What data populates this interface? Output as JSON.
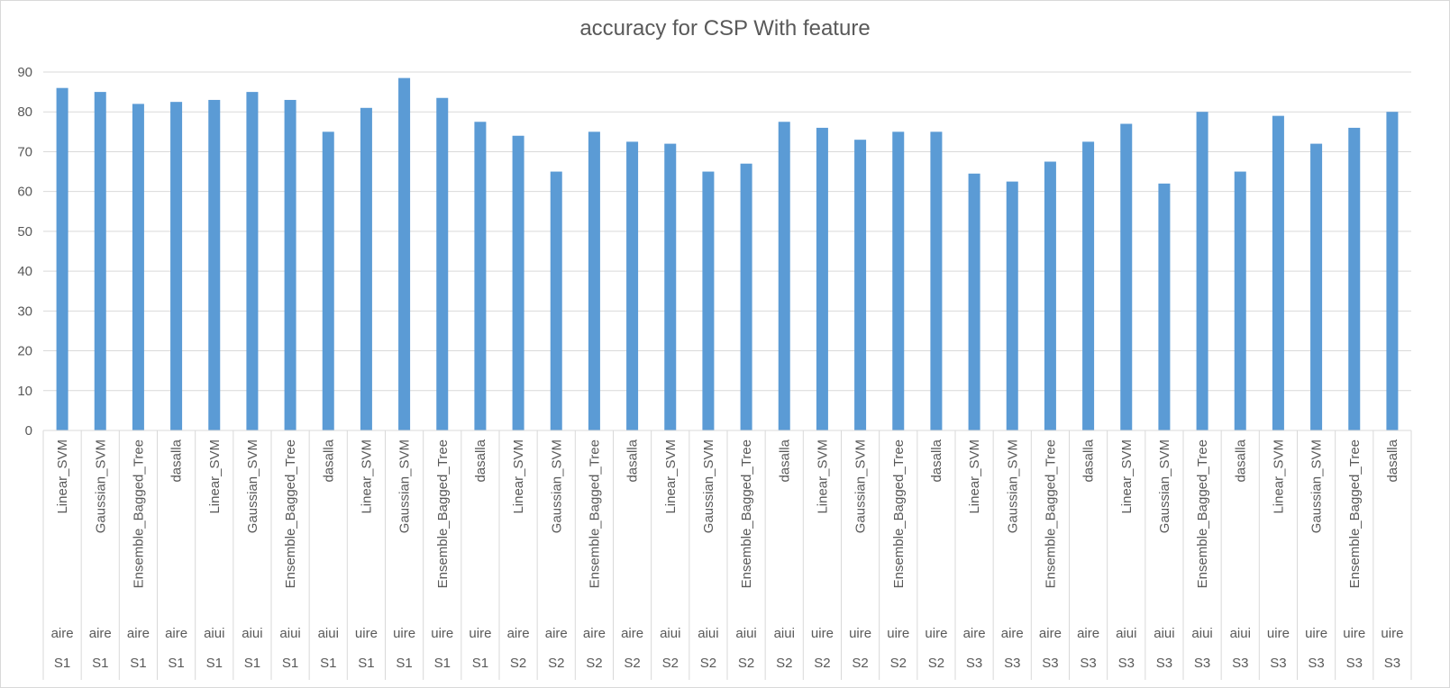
{
  "chart_data": {
    "type": "bar",
    "title": "accuracy for CSP With feature",
    "xlabel": "",
    "ylabel": "",
    "ylim": [
      0,
      90
    ],
    "yticks": [
      0,
      10,
      20,
      30,
      40,
      50,
      60,
      70,
      80,
      90
    ],
    "grid": true,
    "legend": "none",
    "bar_color": "#5b9bd5",
    "categories": [
      {
        "classifier": "Linear_SVM",
        "task": "aire",
        "subject": "S1"
      },
      {
        "classifier": "Gaussian_SVM",
        "task": "aire",
        "subject": "S1"
      },
      {
        "classifier": "Ensemble_Bagged_Tree",
        "task": "aire",
        "subject": "S1"
      },
      {
        "classifier": "dasalla",
        "task": "aire",
        "subject": "S1"
      },
      {
        "classifier": "Linear_SVM",
        "task": "aiui",
        "subject": "S1"
      },
      {
        "classifier": "Gaussian_SVM",
        "task": "aiui",
        "subject": "S1"
      },
      {
        "classifier": "Ensemble_Bagged_Tree",
        "task": "aiui",
        "subject": "S1"
      },
      {
        "classifier": "dasalla",
        "task": "aiui",
        "subject": "S1"
      },
      {
        "classifier": "Linear_SVM",
        "task": "uire",
        "subject": "S1"
      },
      {
        "classifier": "Gaussian_SVM",
        "task": "uire",
        "subject": "S1"
      },
      {
        "classifier": "Ensemble_Bagged_Tree",
        "task": "uire",
        "subject": "S1"
      },
      {
        "classifier": "dasalla",
        "task": "uire",
        "subject": "S1"
      },
      {
        "classifier": "Linear_SVM",
        "task": "aire",
        "subject": "S2"
      },
      {
        "classifier": "Gaussian_SVM",
        "task": "aire",
        "subject": "S2"
      },
      {
        "classifier": "Ensemble_Bagged_Tree",
        "task": "aire",
        "subject": "S2"
      },
      {
        "classifier": "dasalla",
        "task": "aire",
        "subject": "S2"
      },
      {
        "classifier": "Linear_SVM",
        "task": "aiui",
        "subject": "S2"
      },
      {
        "classifier": "Gaussian_SVM",
        "task": "aiui",
        "subject": "S2"
      },
      {
        "classifier": "Ensemble_Bagged_Tree",
        "task": "aiui",
        "subject": "S2"
      },
      {
        "classifier": "dasalla",
        "task": "aiui",
        "subject": "S2"
      },
      {
        "classifier": "Linear_SVM",
        "task": "uire",
        "subject": "S2"
      },
      {
        "classifier": "Gaussian_SVM",
        "task": "uire",
        "subject": "S2"
      },
      {
        "classifier": "Ensemble_Bagged_Tree",
        "task": "uire",
        "subject": "S2"
      },
      {
        "classifier": "dasalla",
        "task": "uire",
        "subject": "S2"
      },
      {
        "classifier": "Linear_SVM",
        "task": "aire",
        "subject": "S3"
      },
      {
        "classifier": "Gaussian_SVM",
        "task": "aire",
        "subject": "S3"
      },
      {
        "classifier": "Ensemble_Bagged_Tree",
        "task": "aire",
        "subject": "S3"
      },
      {
        "classifier": "dasalla",
        "task": "aire",
        "subject": "S3"
      },
      {
        "classifier": "Linear_SVM",
        "task": "aiui",
        "subject": "S3"
      },
      {
        "classifier": "Gaussian_SVM",
        "task": "aiui",
        "subject": "S3"
      },
      {
        "classifier": "Ensemble_Bagged_Tree",
        "task": "aiui",
        "subject": "S3"
      },
      {
        "classifier": "dasalla",
        "task": "aiui",
        "subject": "S3"
      },
      {
        "classifier": "Linear_SVM",
        "task": "uire",
        "subject": "S3"
      },
      {
        "classifier": "Gaussian_SVM",
        "task": "uire",
        "subject": "S3"
      },
      {
        "classifier": "Ensemble_Bagged_Tree",
        "task": "uire",
        "subject": "S3"
      },
      {
        "classifier": "dasalla",
        "task": "uire",
        "subject": "S3"
      }
    ],
    "values": [
      86,
      85,
      82,
      82.5,
      83,
      85,
      83,
      75,
      81,
      88.5,
      83.5,
      77.5,
      74,
      65,
      75,
      72.5,
      72,
      65,
      67,
      77.5,
      76,
      73,
      75,
      75,
      64.5,
      62.5,
      67.5,
      72.5,
      77,
      62,
      80,
      65,
      79,
      72,
      76,
      80
    ]
  }
}
